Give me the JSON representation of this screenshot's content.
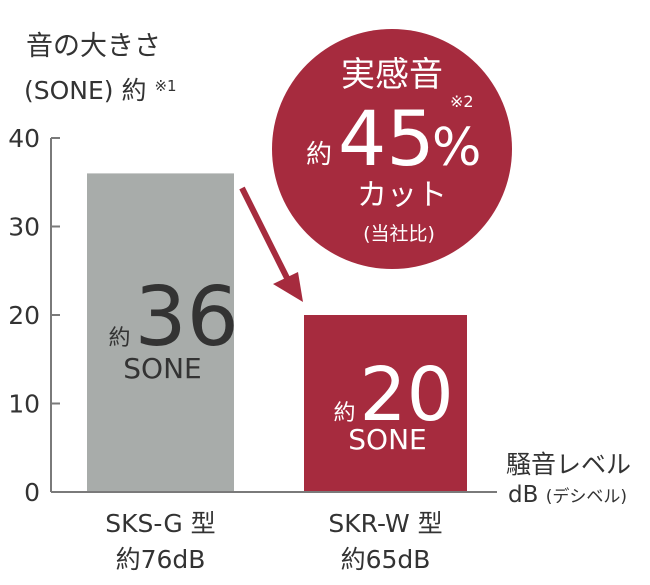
{
  "chart_data": {
    "type": "bar",
    "ylabel_line1": "音の大きさ",
    "ylabel_line2": "(SONE) 約",
    "ylabel_note": "※1",
    "ylim": [
      0,
      40
    ],
    "yticks": [
      0,
      10,
      20,
      30,
      40
    ],
    "categories": [
      {
        "name": "SKS-G 型",
        "sub": "約76dB"
      },
      {
        "name": "SKR-W 型",
        "sub": "約65dB"
      }
    ],
    "values": [
      36,
      20
    ],
    "value_prefix": "約",
    "value_unit": "SONE",
    "colors": [
      "#a8acaa",
      "#a62b3e"
    ],
    "xlabel_line1": "騒音レベル",
    "xlabel_line2": "dB",
    "xlabel_note": "(デシベル)",
    "annotation": {
      "line1": "実感音",
      "prefix": "約",
      "value": "45",
      "unit": "%",
      "note": "※2",
      "line3": "カット",
      "line4": "(当社比)",
      "color": "#a62b3e"
    }
  }
}
